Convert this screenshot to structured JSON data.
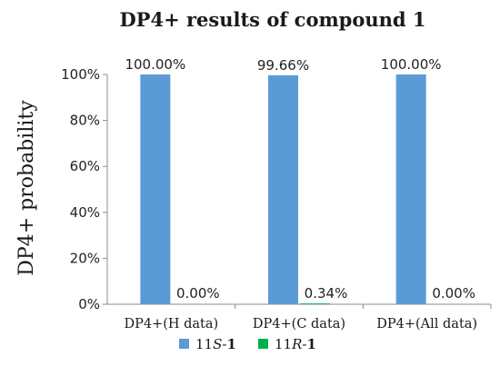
{
  "chart_data": {
    "type": "bar",
    "title": "DP4+ results of compound 1",
    "xlabel": "",
    "ylabel": "DP4+ probability",
    "ylim": [
      0,
      100
    ],
    "yticks": [
      "0%",
      "20%",
      "40%",
      "60%",
      "80%",
      "100%"
    ],
    "categories": [
      "DP4+(H data)",
      "DP4+(C data)",
      "DP4+(All data)"
    ],
    "series": [
      {
        "name": "11S-1",
        "name_parts": [
          "11",
          "S",
          "-",
          "1"
        ],
        "color": "#5b9bd5",
        "values": [
          100.0,
          99.66,
          100.0
        ],
        "labels": [
          "100.00%",
          "99.66%",
          "100.00%"
        ]
      },
      {
        "name": "11R-1",
        "name_parts": [
          "11",
          "R",
          "-",
          "1"
        ],
        "color": "#00b050",
        "values": [
          0.0,
          0.34,
          0.0
        ],
        "labels": [
          "0.00%",
          "0.34%",
          "0.00%"
        ]
      }
    ],
    "grid": false,
    "legend": "bottom"
  }
}
